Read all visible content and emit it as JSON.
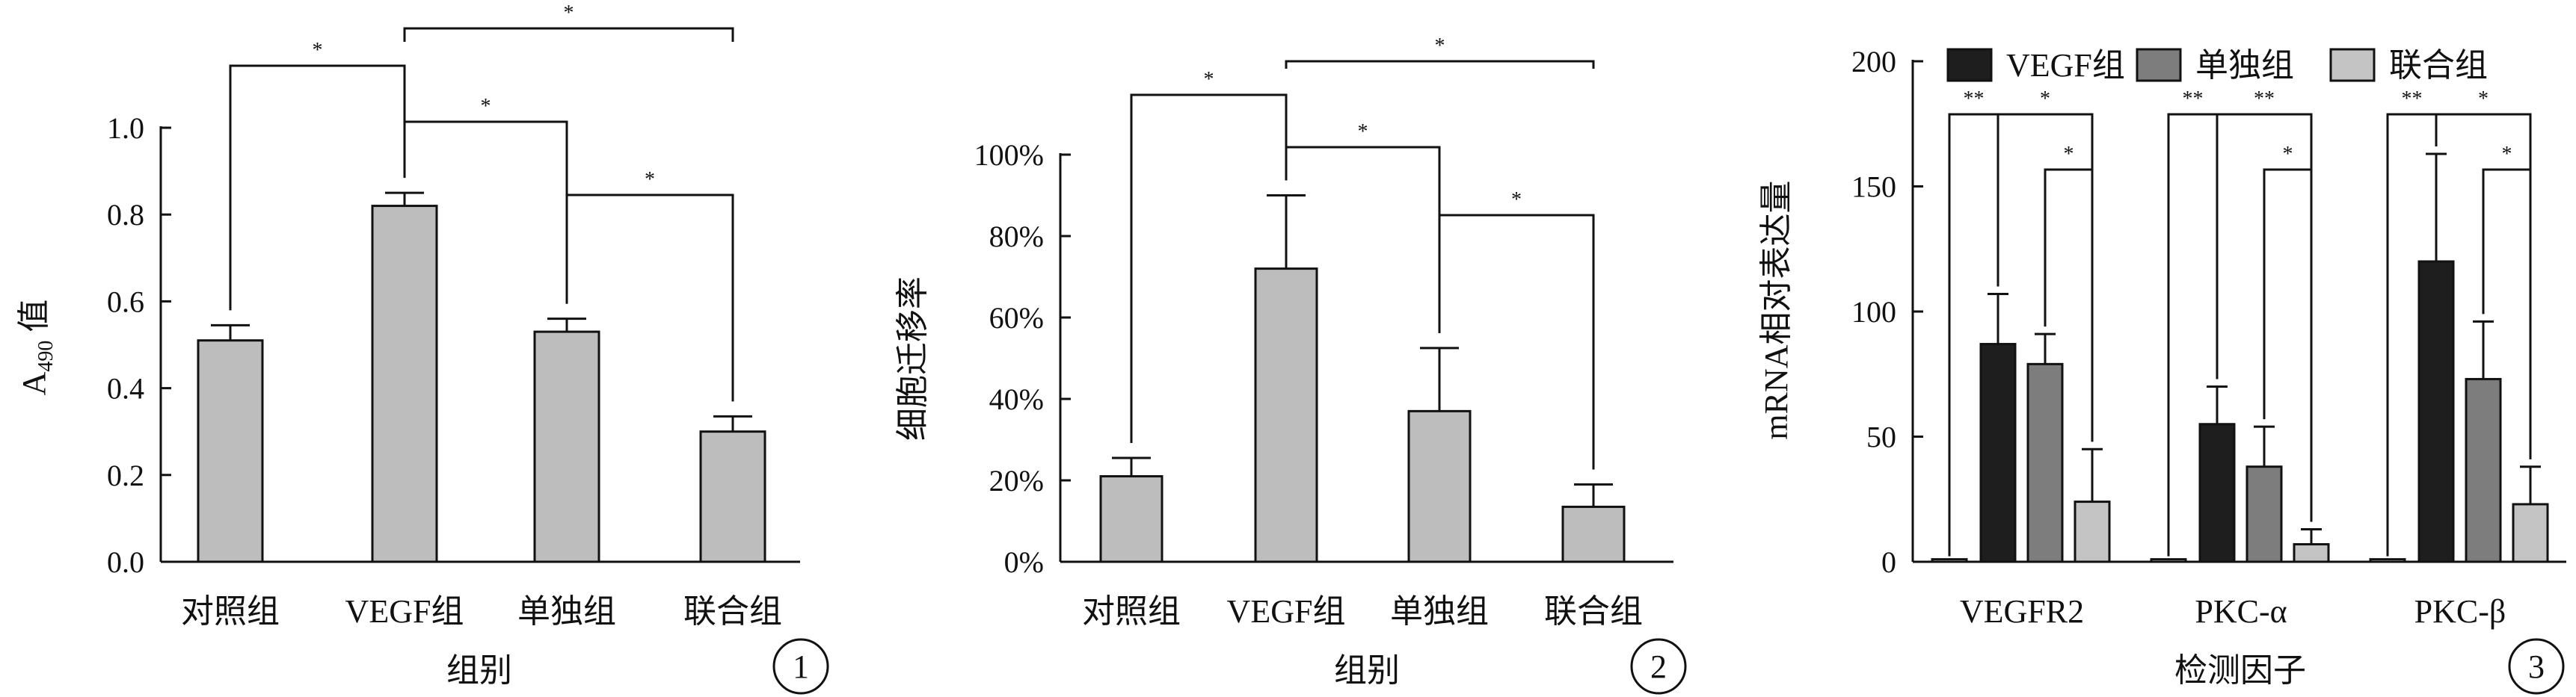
{
  "colors": {
    "bar_gray": "#bdbdbd",
    "vegf": "#1e1e1e",
    "single": "#7d7d7d",
    "combined": "#c4c4c4",
    "line": "#111111"
  },
  "chart_data": [
    {
      "type": "bar",
      "panel_number": "1",
      "categories": [
        "对照组",
        "VEGF组",
        "单独组",
        "联合组"
      ],
      "values": [
        0.51,
        0.82,
        0.53,
        0.3
      ],
      "errors": [
        0.035,
        0.03,
        0.03,
        0.035
      ],
      "yticks": [
        "0.0",
        "0.2",
        "0.4",
        "0.6",
        "0.8",
        "1.0"
      ],
      "ylim": [
        0,
        1.0
      ],
      "xlabel": "组别",
      "ylabel_main": "A",
      "ylabel_sub": "490",
      "ylabel_tail": "值",
      "significance": [
        "*",
        "*",
        "*",
        "*"
      ],
      "grid": false
    },
    {
      "type": "bar",
      "panel_number": "2",
      "categories": [
        "对照组",
        "VEGF组",
        "单独组",
        "联合组"
      ],
      "values": [
        21,
        72,
        37,
        13.5
      ],
      "errors": [
        4.5,
        18,
        15.5,
        5.5
      ],
      "yticks": [
        "0%",
        "20%",
        "40%",
        "60%",
        "80%",
        "100%"
      ],
      "ylim": [
        0,
        100
      ],
      "xlabel": "组别",
      "ylabel": "细胞迁移率",
      "significance": [
        "*",
        "*",
        "*",
        "*"
      ],
      "grid": false
    },
    {
      "type": "bar",
      "panel_number": "3",
      "categories": [
        "VEGFR2",
        "PKC-α",
        "PKC-β"
      ],
      "series": [
        {
          "name": "VEGF组",
          "values": [
            87,
            55,
            120
          ],
          "errors": [
            20,
            15,
            43
          ]
        },
        {
          "name": "单独组",
          "values": [
            79,
            38,
            73
          ],
          "errors": [
            12,
            16,
            23
          ]
        },
        {
          "name": "联合组",
          "values": [
            24,
            7,
            23
          ],
          "errors": [
            21,
            6,
            15
          ]
        }
      ],
      "control_values": [
        1,
        1,
        1
      ],
      "yticks": [
        "0",
        "50",
        "100",
        "150",
        "200"
      ],
      "ylim": [
        0,
        200
      ],
      "xlabel": "检测因子",
      "ylabel": "mRNA相对表达量",
      "significance": [
        "**",
        "*",
        "*",
        "**",
        "**",
        "*",
        "**",
        "*",
        "*"
      ],
      "legend_position": "top",
      "grid": false
    }
  ]
}
